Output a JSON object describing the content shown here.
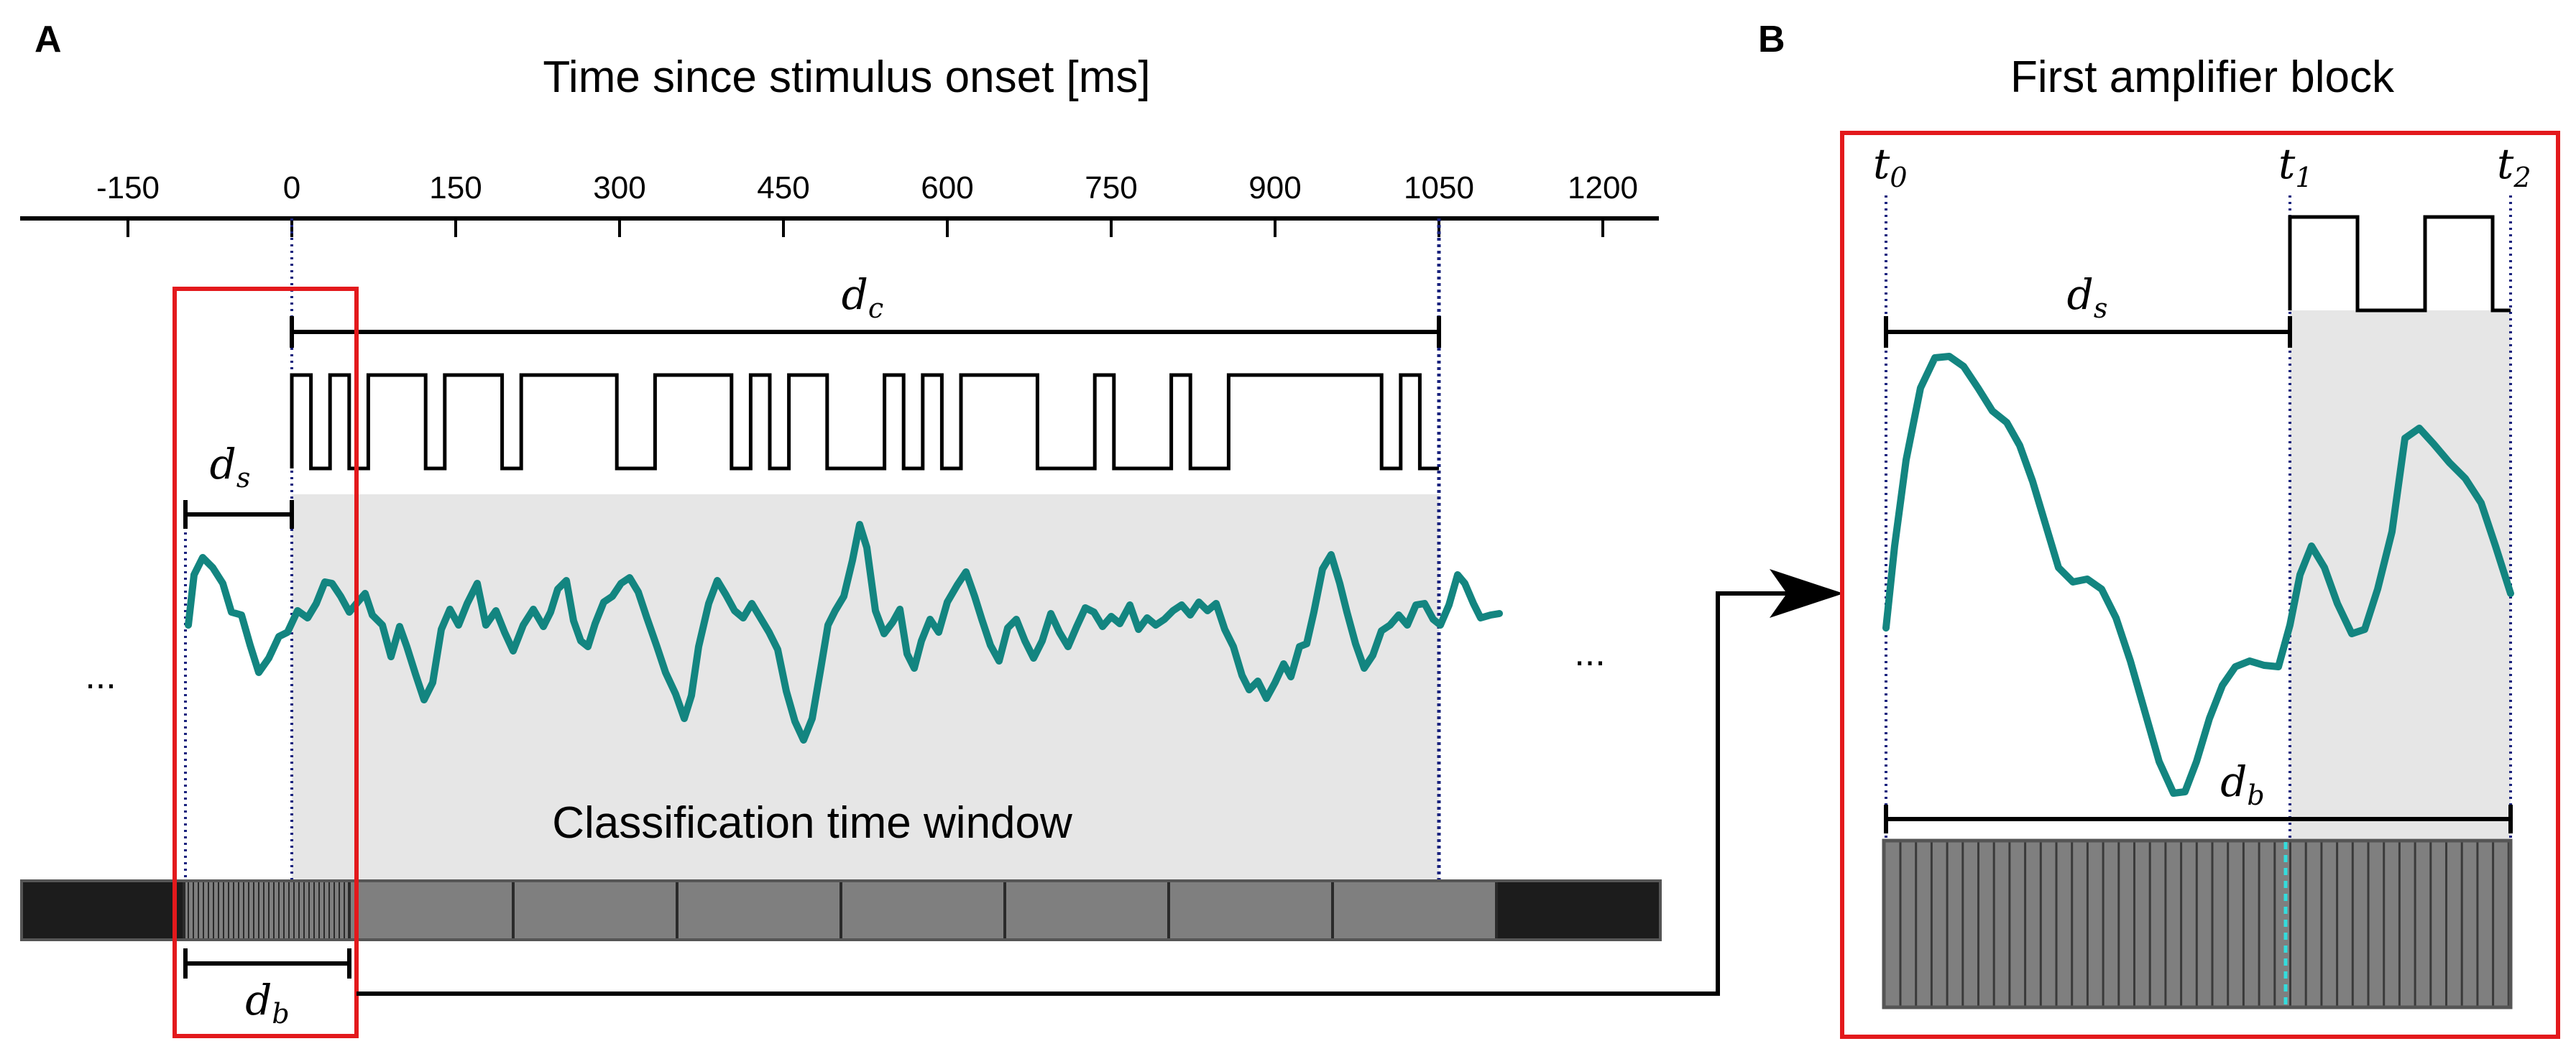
{
  "panel_a": {
    "label": "A",
    "axis_title": "Time since stimulus onset [ms]",
    "ticks": [
      "-150",
      "0",
      "150",
      "300",
      "450",
      "600",
      "750",
      "900",
      "1050",
      "1200"
    ],
    "tick_values": [
      -150,
      0,
      150,
      300,
      450,
      600,
      750,
      900,
      1050,
      1200
    ],
    "code_duration_label": "d",
    "code_duration_sub": "c",
    "shift_label": "d",
    "shift_sub": "s",
    "block_label": "d",
    "block_sub": "b",
    "window_label": "Classification time window",
    "ellipsis_left": "...",
    "ellipsis_right": "...",
    "window_start_ms": 0,
    "window_end_ms": 1050
  },
  "panel_b": {
    "label": "B",
    "title": "First amplifier block",
    "t0": "t",
    "t0_sub": "0",
    "t1": "t",
    "t1_sub": "1",
    "t2": "t",
    "t2_sub": "2",
    "shift_label": "d",
    "shift_sub": "s",
    "block_label": "d",
    "block_sub": "b"
  },
  "colors": {
    "signal": "#138580",
    "highlight": "#e3191c",
    "window_fill": "#e6e6e6",
    "dotted_guide": "#1a237e",
    "cyan_marker": "#33dddd",
    "amp_block": "#7f7f7f",
    "amp_dark": "#1c1c1c"
  }
}
